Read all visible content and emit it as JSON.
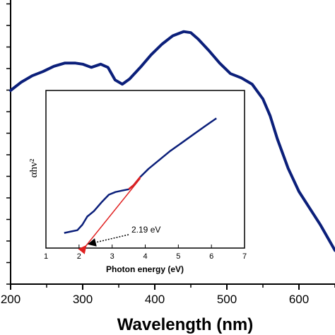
{
  "chart_data": [
    {
      "type": "line",
      "xlabel": "Wavelength (nm)",
      "ylabel": "",
      "xlim": [
        200,
        650
      ],
      "x_ticks": [
        200,
        300,
        400,
        500,
        600
      ],
      "line_color": "#0b1f7a",
      "series": [
        {
          "points": [
            [
              200,
              92
            ],
            [
              215,
              96
            ],
            [
              230,
              99
            ],
            [
              245,
              101
            ],
            [
              260,
              103.5
            ],
            [
              275,
              105
            ],
            [
              290,
              105
            ],
            [
              300,
              104.5
            ],
            [
              312,
              103
            ],
            [
              325,
              104.5
            ],
            [
              335,
              103
            ],
            [
              345,
              97
            ],
            [
              355,
              95
            ],
            [
              365,
              97.5
            ],
            [
              380,
              103
            ],
            [
              395,
              109
            ],
            [
              410,
              114
            ],
            [
              425,
              118
            ],
            [
              440,
              120
            ],
            [
              450,
              119.5
            ],
            [
              460,
              116.5
            ],
            [
              475,
              111
            ],
            [
              490,
              105
            ],
            [
              505,
              100
            ],
            [
              520,
              98
            ],
            [
              535,
              95
            ],
            [
              550,
              88
            ],
            [
              560,
              80
            ],
            [
              570,
              69
            ],
            [
              585,
              55
            ],
            [
              600,
              44
            ],
            [
              615,
              36
            ],
            [
              630,
              28
            ],
            [
              640,
              22
            ],
            [
              650,
              16
            ]
          ]
        }
      ]
    },
    {
      "type": "line",
      "xlabel": "Photon energy (eV)",
      "ylabel": "αhν²",
      "xlim": [
        1,
        7
      ],
      "x_ticks": [
        1,
        2,
        3,
        4,
        5,
        6,
        7
      ],
      "ylim": [
        0,
        1
      ],
      "line_color": "#0b1f7a",
      "tangent_color": "#e02020",
      "series": [
        {
          "points": [
            [
              1.55,
              0.08
            ],
            [
              1.75,
              0.09
            ],
            [
              1.95,
              0.1
            ],
            [
              2.1,
              0.14
            ],
            [
              2.25,
              0.2
            ],
            [
              2.45,
              0.24
            ],
            [
              2.7,
              0.31
            ],
            [
              2.9,
              0.36
            ],
            [
              3.1,
              0.38
            ],
            [
              3.3,
              0.39
            ],
            [
              3.5,
              0.4
            ],
            [
              3.65,
              0.43
            ],
            [
              3.85,
              0.49
            ],
            [
              4.1,
              0.55
            ],
            [
              4.4,
              0.61
            ],
            [
              4.75,
              0.68
            ],
            [
              5.1,
              0.74
            ],
            [
              5.5,
              0.81
            ],
            [
              5.85,
              0.87
            ],
            [
              6.15,
              0.92
            ]
          ]
        }
      ],
      "tangent": {
        "from": [
          2.19,
          0.0
        ],
        "to": [
          3.85,
          0.48
        ]
      },
      "annotation": {
        "text": "2.19 eV",
        "x_value": 2.19
      }
    }
  ]
}
